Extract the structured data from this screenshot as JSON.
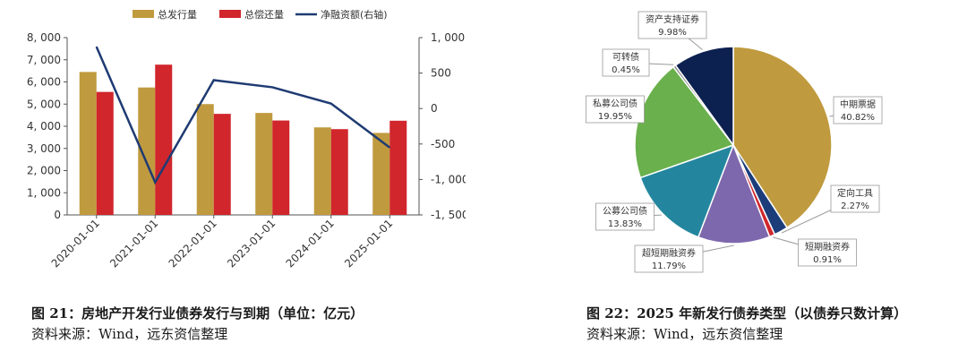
{
  "chart_data": [
    {
      "type": "bar",
      "categories": [
        "2020-01-01",
        "2021-01-01",
        "2022-01-01",
        "2023-01-01",
        "2024-01-01",
        "2025-01-01"
      ],
      "series": [
        {
          "name": "总发行量",
          "type": "bar",
          "axis": "left",
          "color": "#c09a3e",
          "values": [
            6450,
            5750,
            5000,
            4600,
            3950,
            3700
          ]
        },
        {
          "name": "总偿还量",
          "type": "bar",
          "axis": "left",
          "color": "#d0262c",
          "values": [
            5550,
            6780,
            4560,
            4260,
            3870,
            4250
          ]
        },
        {
          "name": "净融资额(右轴)",
          "type": "line",
          "axis": "right",
          "color": "#1f3b73",
          "values": [
            870,
            -1040,
            400,
            300,
            70,
            -550
          ]
        }
      ],
      "ylim": [
        0,
        8000
      ],
      "y_ticks": [
        "0",
        "1, 000",
        "2, 000",
        "3, 000",
        "4, 000",
        "5, 000",
        "6, 000",
        "7, 000",
        "8, 000"
      ],
      "y2lim": [
        -1500,
        1000
      ],
      "y2_ticks": [
        "-1, 500",
        "-1, 000",
        "-500",
        "0",
        "500",
        "1, 000"
      ],
      "legend_position": "top",
      "grid": false
    },
    {
      "type": "pie",
      "slices": [
        {
          "label": "中期票据",
          "value": 40.82,
          "value_label": "40.82%",
          "color": "#c09a3e"
        },
        {
          "label": "定向工具",
          "value": 2.27,
          "value_label": "2.27%",
          "color": "#1c3d7a"
        },
        {
          "label": "短期融资券",
          "value": 0.91,
          "value_label": "0.91%",
          "color": "#d0262c"
        },
        {
          "label": "超短期融资券",
          "value": 11.79,
          "value_label": "11.79%",
          "color": "#7e68ad"
        },
        {
          "label": "公募公司债",
          "value": 13.83,
          "value_label": "13.83%",
          "color": "#24869e"
        },
        {
          "label": "私募公司债",
          "value": 19.95,
          "value_label": "19.95%",
          "color": "#6ab04c"
        },
        {
          "label": "可转债",
          "value": 0.45,
          "value_label": "0.45%",
          "color": "#8a8a8a"
        },
        {
          "label": "资产支持证券",
          "value": 9.98,
          "value_label": "9.98%",
          "color": "#0d2150"
        }
      ]
    }
  ],
  "figure21": {
    "caption": "图 21：房地产开发行业债券发行与到期（单位：亿元）",
    "source": "资料来源：Wind，远东资信整理"
  },
  "figure22": {
    "caption": "图 22：2025 年新发行债券类型（以债券只数计算）",
    "source": "资料来源：Wind，远东资信整理"
  }
}
